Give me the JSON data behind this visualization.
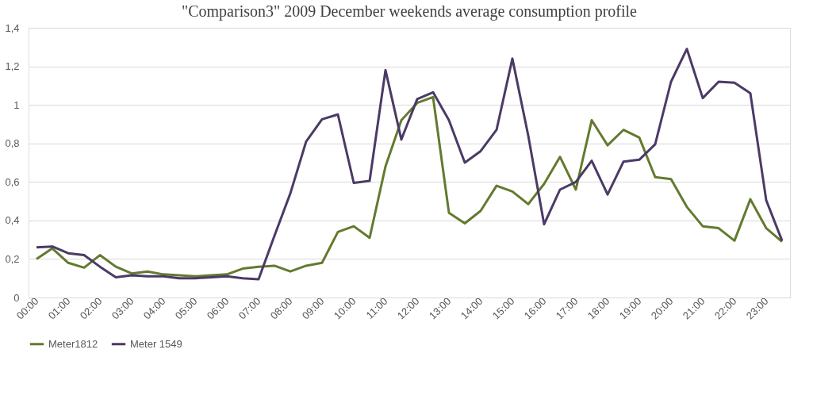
{
  "chart_data": {
    "type": "line",
    "title": "\"Comparison3\" 2009  December weekends average  consumption profile",
    "categories": [
      "00:00",
      null,
      "01:00",
      null,
      "02:00",
      null,
      "03:00",
      null,
      "04:00",
      null,
      "05:00",
      null,
      "06:00",
      null,
      "07:00",
      null,
      "08:00",
      null,
      "09:00",
      null,
      "10:00",
      null,
      "11:00",
      null,
      "12:00",
      null,
      "13:00",
      null,
      "14:00",
      null,
      "15:00",
      null,
      "16:00",
      null,
      "17:00",
      null,
      "18:00",
      null,
      "19:00",
      null,
      "20:00",
      null,
      "21:00",
      null,
      "22:00",
      null,
      "23:00",
      null
    ],
    "series": [
      {
        "name": "Meter1812",
        "color": "#637a2f",
        "values": [
          0.2,
          0.255,
          0.18,
          0.155,
          0.22,
          0.16,
          0.125,
          0.135,
          0.12,
          0.115,
          0.11,
          0.115,
          0.12,
          0.15,
          0.16,
          0.165,
          0.135,
          0.165,
          0.18,
          0.34,
          0.37,
          0.31,
          0.68,
          0.92,
          1.01,
          1.04,
          0.44,
          0.385,
          0.45,
          0.58,
          0.55,
          0.485,
          0.59,
          0.73,
          0.56,
          0.92,
          0.79,
          0.87,
          0.83,
          0.625,
          0.615,
          0.47,
          0.37,
          0.36,
          0.295,
          0.51,
          0.36,
          0.29
        ]
      },
      {
        "name": "Meter 1549",
        "color": "#4b3a66",
        "values": [
          0.26,
          0.265,
          0.23,
          0.22,
          0.16,
          0.105,
          0.115,
          0.11,
          0.11,
          0.1,
          0.1,
          0.105,
          0.11,
          0.1,
          0.095,
          0.32,
          0.54,
          0.81,
          0.925,
          0.95,
          0.595,
          0.605,
          1.18,
          0.82,
          1.03,
          1.065,
          0.92,
          0.7,
          0.76,
          0.87,
          1.24,
          0.84,
          0.38,
          0.56,
          0.6,
          0.71,
          0.535,
          0.705,
          0.715,
          0.795,
          1.12,
          1.29,
          1.035,
          1.12,
          1.115,
          1.06,
          0.505,
          0.295
        ]
      }
    ],
    "ylim": [
      0,
      1.4
    ],
    "yticks": [
      0,
      {
        "value": 0.2,
        "label": "0,2"
      },
      {
        "value": 0.4,
        "label": "0,4"
      },
      {
        "value": 0.6,
        "label": "0,6"
      },
      {
        "value": 0.8,
        "label": "0,8"
      },
      1,
      {
        "value": 1.2,
        "label": "1,2"
      },
      {
        "value": 1.4,
        "label": "1,4"
      }
    ],
    "grid": "y",
    "legend": "bottom",
    "marker": "none",
    "line_style": "solid"
  }
}
